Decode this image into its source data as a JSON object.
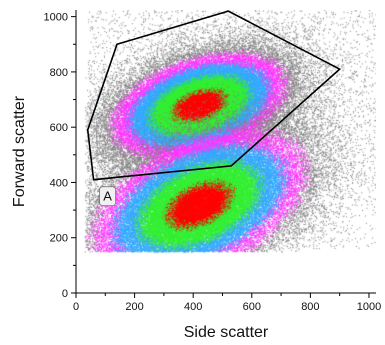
{
  "chart_data": {
    "type": "scatter",
    "subtype": "flow-cytometry density dot plot",
    "xlabel": "Side scatter",
    "ylabel": "Forward scatter",
    "xlim": [
      0,
      1024
    ],
    "ylim": [
      0,
      1024
    ],
    "x_ticks": [
      0,
      200,
      400,
      600,
      800,
      1000
    ],
    "y_ticks": [
      0,
      200,
      400,
      600,
      800,
      1000
    ],
    "grid": false,
    "density_colors": [
      "#808080",
      "#ff33ff",
      "#33a8ff",
      "#33ee33",
      "#ff0000"
    ],
    "populations": [
      {
        "center": [
          420,
          680
        ],
        "spread": [
          110,
          60
        ],
        "tilt_deg": 20,
        "extent": "high-density core from x 140 to 700, y 500 to 800"
      },
      {
        "center": [
          420,
          320
        ],
        "spread": [
          140,
          80
        ],
        "tilt_deg": 28,
        "extent": "high-density core from x 200 to 720, y 160 to 460"
      }
    ],
    "background_region": {
      "x_range": [
        40,
        1024
      ],
      "y_range": [
        150,
        1024
      ]
    },
    "gates": [
      {
        "label": "A",
        "vertices": [
          [
            40,
            590
          ],
          [
            140,
            900
          ],
          [
            520,
            1020
          ],
          [
            900,
            810
          ],
          [
            530,
            460
          ],
          [
            60,
            410
          ]
        ],
        "stroke": "#000000"
      }
    ]
  }
}
